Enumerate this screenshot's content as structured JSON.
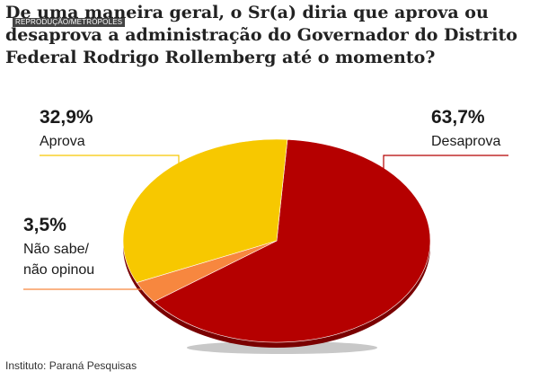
{
  "title": "De uma maneira geral, o Sr(a) diria que aprova ou desaprova a administração do Governador do Distrito Federal Rodrigo Rollemberg até o momento?",
  "credit": "REPRODUÇÃO/METRÓPOLES",
  "source": "Instituto: Paraná Pesquisas",
  "chart_data": {
    "type": "pie",
    "title": "De uma maneira geral, o Sr(a) diria que aprova ou desaprova a administração do Governador do Distrito Federal Rodrigo Rollemberg até o momento?",
    "style": "3d-tilted",
    "slices": [
      {
        "label": "Desaprova",
        "value": 63.7,
        "value_label": "63,7%",
        "color": "#b50000",
        "label_lines": [
          "Desaprova"
        ]
      },
      {
        "label": "Não sabe/ não opinou",
        "value": 3.5,
        "value_label": "3,5%",
        "color": "#f7873f",
        "label_lines": [
          "Não sabe/",
          "não opinou"
        ]
      },
      {
        "label": "Aprova",
        "value": 32.9,
        "value_label": "32,9%",
        "color": "#f7c800",
        "label_lines": [
          "Aprova"
        ]
      }
    ],
    "edge_color": "#7a0000",
    "shadow_color": "#c8c8c8",
    "legend": "none"
  }
}
